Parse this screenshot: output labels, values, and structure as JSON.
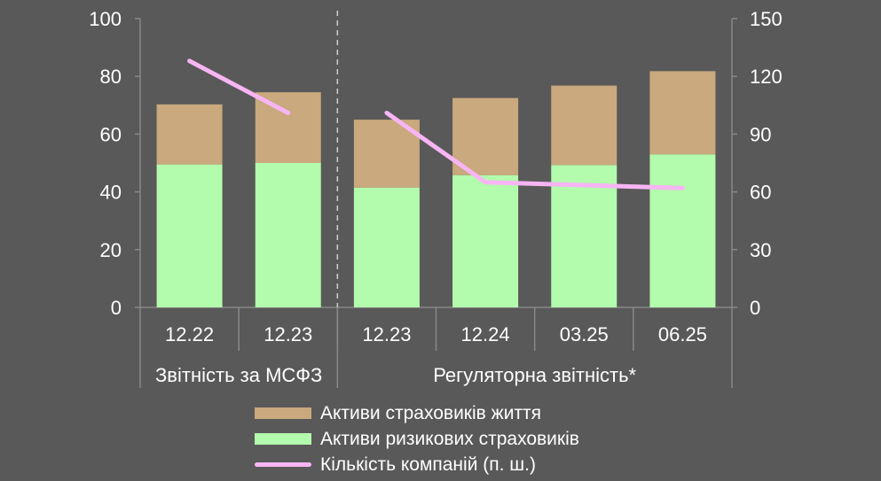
{
  "chart_data": {
    "type": "bar",
    "stacked": true,
    "categories": [
      "12.22",
      "12.23",
      "12.23",
      "12.24",
      "03.25",
      "06.25"
    ],
    "groups": [
      {
        "label": "Звітність за МСФЗ",
        "categories": [
          0,
          1
        ]
      },
      {
        "label": "Регуляторна звітність*",
        "categories": [
          2,
          3,
          4,
          5
        ]
      }
    ],
    "series": [
      {
        "name": "Активи ризикових страховиків",
        "axis": "left",
        "color": "#b3fbad",
        "values": [
          49.5,
          50,
          41.5,
          45.8,
          49.3,
          53
        ]
      },
      {
        "name": "Активи страховиків життя",
        "axis": "left",
        "color": "#c9a97d",
        "values": [
          20.8,
          24.5,
          23.5,
          26.7,
          27.5,
          28.8
        ]
      },
      {
        "name": "Кількість компаній (п. ш.)",
        "type": "line",
        "axis": "right",
        "color": "#f7b5f4",
        "segments": [
          [
            0,
            1
          ],
          [
            2,
            3,
            4,
            5
          ]
        ],
        "values": [
          128,
          101,
          101,
          65,
          63.5,
          62
        ]
      }
    ],
    "y_left": {
      "min": 0,
      "max": 100,
      "ticks": [
        0,
        20,
        40,
        60,
        80,
        100
      ]
    },
    "y_right": {
      "min": 0,
      "max": 150,
      "ticks": [
        0,
        30,
        60,
        90,
        120,
        150
      ]
    },
    "legend_position": "bottom",
    "grid": false
  }
}
